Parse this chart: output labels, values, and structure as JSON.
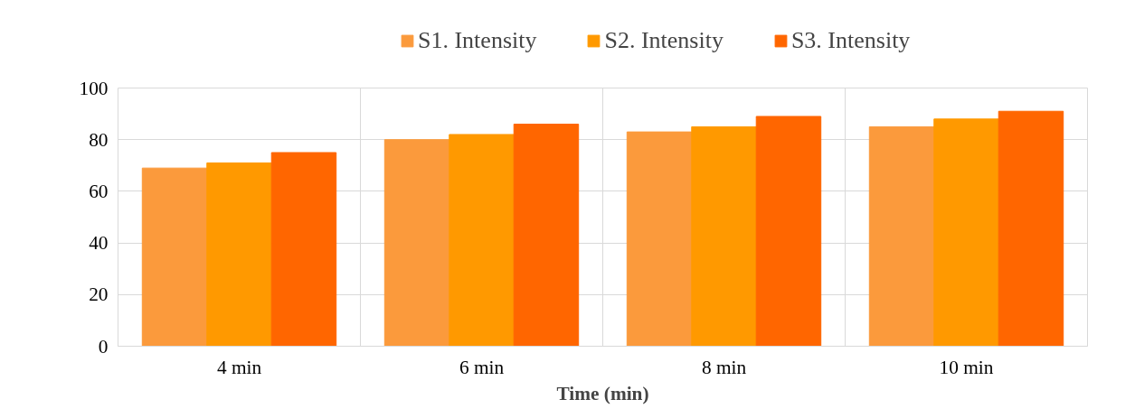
{
  "chart_data": {
    "type": "bar",
    "xlabel": "Time (min)",
    "categories": [
      "4 min",
      "6 min",
      "8 min",
      "10 min"
    ],
    "series": [
      {
        "name": "S1. Intensity",
        "color": "#fb9a3c",
        "values": [
          69,
          80,
          83,
          85
        ]
      },
      {
        "name": "S2. Intensity",
        "color": "#ff9900",
        "values": [
          71,
          82,
          85,
          88
        ]
      },
      {
        "name": "S3. Intensity",
        "color": "#ff6600",
        "values": [
          75,
          86,
          89,
          91
        ]
      }
    ],
    "ylim": [
      0,
      100
    ],
    "yticks": [
      0,
      20,
      40,
      60,
      80,
      100
    ],
    "grid": true,
    "legend": "top"
  }
}
